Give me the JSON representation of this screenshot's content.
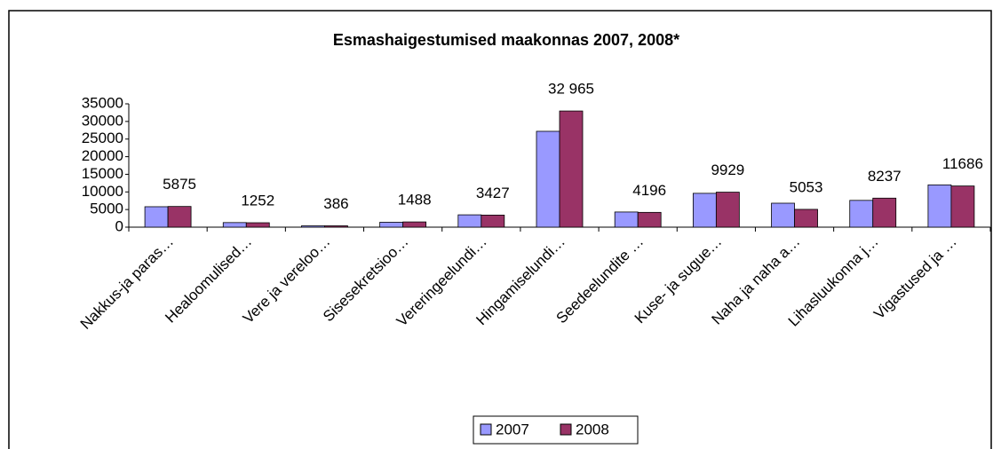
{
  "chart_data": {
    "type": "bar",
    "title": "Esmashaigestumised maakonnas 2007, 2008*",
    "categories": [
      "Nakkus-ja paras…",
      "Healoomulised…",
      "Vere ja vereloo…",
      "Sisesekretsioo…",
      "Vereringeelundi…",
      "Hingamiselundi…",
      "Seedeelundite …",
      "Kuse- ja sugue…",
      "Naha ja naha a…",
      "Lihasluukonna j…",
      "Vigastused ja …"
    ],
    "series": [
      {
        "name": "2007",
        "color": "#9999ff",
        "values": [
          5800,
          1300,
          380,
          1400,
          3500,
          27200,
          4300,
          9600,
          6800,
          7600,
          12000
        ]
      },
      {
        "name": "2008",
        "color": "#993366",
        "values": [
          5875,
          1252,
          386,
          1488,
          3427,
          32965,
          4196,
          9929,
          5053,
          8237,
          11686
        ],
        "value_labels": [
          "5875",
          "1252",
          "386",
          "1488",
          "3427",
          "32 965",
          "4196",
          "9929",
          "5053",
          "8237",
          "11686"
        ]
      }
    ],
    "ylim": [
      0,
      35000
    ],
    "yticks": [
      0,
      5000,
      10000,
      15000,
      20000,
      25000,
      30000,
      35000
    ],
    "grid": false,
    "legend": "bottom"
  }
}
